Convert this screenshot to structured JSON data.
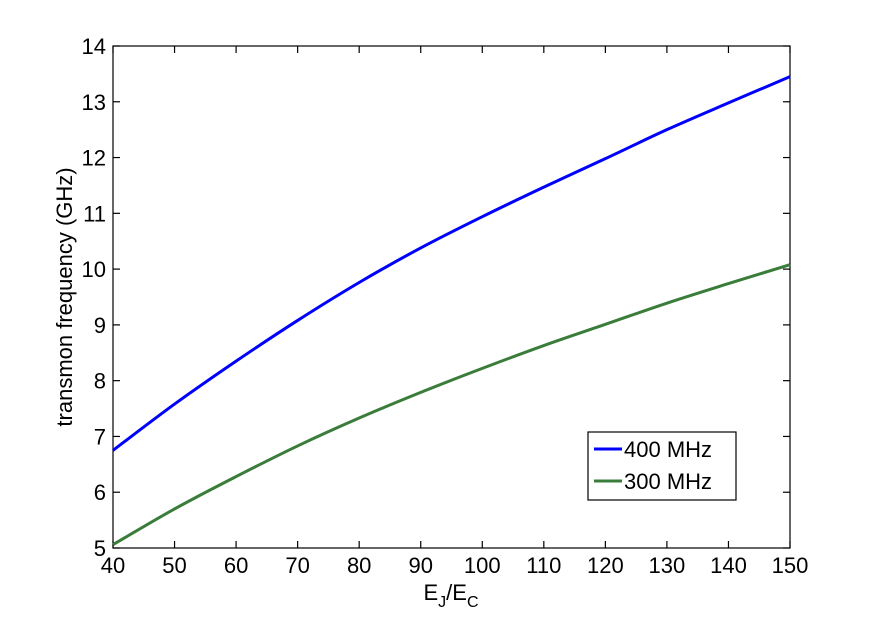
{
  "chart_data": {
    "type": "line",
    "title": "",
    "xlabel": {
      "main": "E",
      "sub1": "J",
      "sep": "/E",
      "sub2": "C"
    },
    "ylabel": "transmon frequency  (GHz)",
    "xlim": [
      40,
      150
    ],
    "ylim": [
      5,
      14
    ],
    "xticks": [
      40,
      50,
      60,
      70,
      80,
      90,
      100,
      110,
      120,
      130,
      140,
      150
    ],
    "yticks": [
      5,
      6,
      7,
      8,
      9,
      10,
      11,
      12,
      13,
      14
    ],
    "grid": false,
    "legend_position": "lower-right",
    "x": [
      40,
      50,
      60,
      70,
      80,
      90,
      100,
      110,
      120,
      130,
      140,
      150
    ],
    "series": [
      {
        "name": "400 MHz",
        "color": "#0000ff",
        "values": [
          6.75,
          7.58,
          8.35,
          9.08,
          9.76,
          10.38,
          10.94,
          11.47,
          11.98,
          12.5,
          12.98,
          13.45
        ]
      },
      {
        "name": "300 MHz",
        "color": "#3a7d3a",
        "values": [
          5.06,
          5.7,
          6.28,
          6.83,
          7.33,
          7.79,
          8.22,
          8.63,
          9.01,
          9.39,
          9.74,
          10.08
        ]
      }
    ]
  }
}
